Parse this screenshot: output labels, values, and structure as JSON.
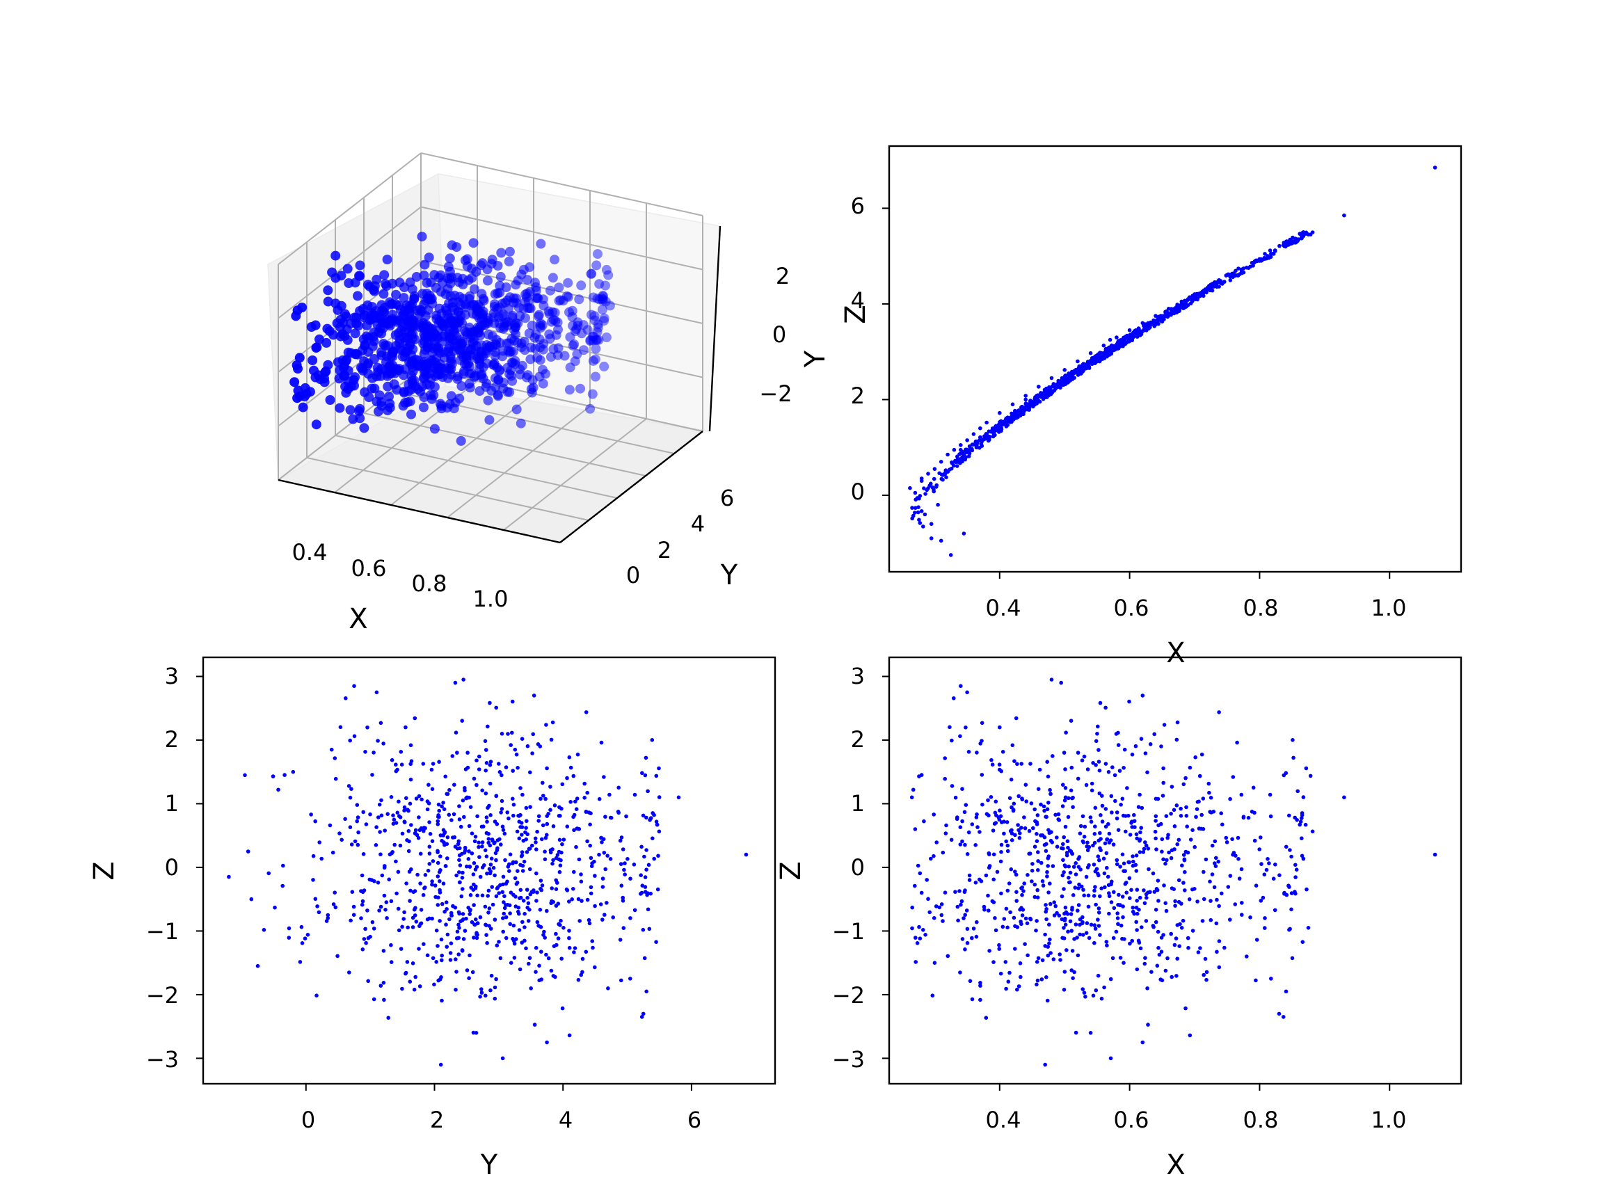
{
  "chart_data": [
    {
      "type": "scatter3d",
      "xlabel": "X",
      "ylabel": "Y",
      "zlabel": "",
      "xticks": [
        "0.4",
        "0.6",
        "0.8",
        "1.0"
      ],
      "yticks": [
        "0",
        "2",
        "4",
        "6"
      ],
      "zticks": [
        "2",
        "0",
        "−2"
      ],
      "xlim": [
        0.26,
        1.08
      ],
      "ylim": [
        -1.3,
        6.9
      ],
      "zlim": [
        -3.1,
        3.0
      ],
      "color": "#0000ff"
    },
    {
      "type": "scatter",
      "xlabel": "X",
      "ylabel": "Y",
      "xlim": [
        0.23,
        1.11
      ],
      "ylim": [
        -1.6,
        7.3
      ],
      "xticks": [
        "0.4",
        "0.6",
        "0.8",
        "1.0"
      ],
      "yticks": [
        "0",
        "2",
        "4",
        "6"
      ],
      "color": "#0000ff",
      "overlap_text": "Z",
      "points": [
        [
          0.262,
          0.15
        ],
        [
          0.27,
          0.05
        ],
        [
          0.275,
          -0.25
        ],
        [
          0.28,
          0.3
        ],
        [
          0.285,
          -0.4
        ],
        [
          0.29,
          0.45
        ],
        [
          0.295,
          -0.6
        ],
        [
          0.3,
          0.55
        ],
        [
          0.305,
          -0.2
        ],
        [
          0.31,
          0.7
        ],
        [
          0.32,
          0.85
        ],
        [
          0.33,
          0.95
        ],
        [
          0.34,
          1.05
        ],
        [
          0.35,
          1.15
        ],
        [
          0.36,
          1.28
        ],
        [
          0.37,
          1.4
        ],
        [
          0.38,
          1.52
        ],
        [
          0.4,
          1.72
        ],
        [
          0.42,
          1.9
        ],
        [
          0.44,
          2.08
        ],
        [
          0.46,
          2.27
        ],
        [
          0.48,
          2.45
        ],
        [
          0.5,
          2.62
        ],
        [
          0.52,
          2.8
        ],
        [
          0.54,
          2.97
        ],
        [
          0.56,
          3.13
        ],
        [
          0.58,
          3.3
        ],
        [
          0.6,
          3.45
        ],
        [
          0.62,
          3.6
        ],
        [
          0.64,
          3.75
        ],
        [
          0.66,
          3.9
        ],
        [
          0.68,
          4.05
        ],
        [
          0.7,
          4.2
        ],
        [
          0.72,
          4.34
        ],
        [
          0.74,
          4.48
        ],
        [
          0.76,
          4.62
        ],
        [
          0.78,
          4.76
        ],
        [
          0.8,
          4.9
        ],
        [
          0.82,
          5.05
        ],
        [
          0.84,
          5.2
        ],
        [
          0.86,
          5.35
        ],
        [
          0.875,
          5.45
        ],
        [
          0.93,
          5.85
        ],
        [
          1.07,
          6.85
        ],
        [
          0.31,
          -0.95
        ],
        [
          0.295,
          -0.9
        ],
        [
          0.325,
          -1.25
        ],
        [
          0.345,
          -0.8
        ],
        [
          0.28,
          0.35
        ],
        [
          0.34,
          0.95
        ],
        [
          0.44,
          2.0
        ],
        [
          0.57,
          3.25
        ],
        [
          0.69,
          4.1
        ],
        [
          0.79,
          4.8
        ]
      ]
    },
    {
      "type": "scatter",
      "xlabel": "Y",
      "ylabel": "Z",
      "xlim": [
        -1.6,
        7.3
      ],
      "ylim": [
        -3.4,
        3.3
      ],
      "xticks": [
        "0",
        "2",
        "4",
        "6"
      ],
      "yticks": [
        "−3",
        "−2",
        "−1",
        "0",
        "1",
        "2",
        "3"
      ],
      "color": "#0000ff",
      "points": [
        [
          -1.2,
          -0.15
        ],
        [
          -0.95,
          1.45
        ],
        [
          -0.9,
          0.25
        ],
        [
          -0.85,
          -0.5
        ],
        [
          -0.75,
          -1.55
        ],
        [
          -0.2,
          1.5
        ],
        [
          0.4,
          1.85
        ],
        [
          0.75,
          2.85
        ],
        [
          1.1,
          2.75
        ],
        [
          2.45,
          2.95
        ],
        [
          3.55,
          2.7
        ],
        [
          6.85,
          0.2
        ],
        [
          5.8,
          1.1
        ],
        [
          5.25,
          -2.3
        ],
        [
          3.75,
          -2.75
        ],
        [
          2.1,
          -3.1
        ],
        [
          2.65,
          -2.6
        ],
        [
          1.55,
          2.2
        ],
        [
          3.05,
          2.1
        ],
        [
          4.7,
          -1.9
        ]
      ]
    },
    {
      "type": "scatter",
      "xlabel": "X",
      "ylabel": "Z",
      "xlim": [
        0.23,
        1.11
      ],
      "ylim": [
        -3.4,
        3.3
      ],
      "xticks": [
        "0.4",
        "0.6",
        "0.8",
        "1.0"
      ],
      "yticks": [
        "−3",
        "−2",
        "−1",
        "0",
        "1",
        "2",
        "3"
      ],
      "color": "#0000ff",
      "points": [
        [
          0.265,
          1.1
        ],
        [
          0.27,
          0.6
        ],
        [
          0.28,
          -0.4
        ],
        [
          0.3,
          -1.5
        ],
        [
          0.34,
          2.85
        ],
        [
          0.35,
          2.75
        ],
        [
          0.48,
          2.95
        ],
        [
          0.62,
          2.7
        ],
        [
          1.07,
          0.2
        ],
        [
          0.93,
          1.1
        ],
        [
          0.83,
          -2.3
        ],
        [
          0.62,
          -2.75
        ],
        [
          0.47,
          -3.1
        ],
        [
          0.54,
          -2.6
        ],
        [
          0.4,
          2.2
        ],
        [
          0.55,
          2.1
        ],
        [
          0.875,
          -0.95
        ],
        [
          0.78,
          -1.4
        ]
      ]
    }
  ]
}
